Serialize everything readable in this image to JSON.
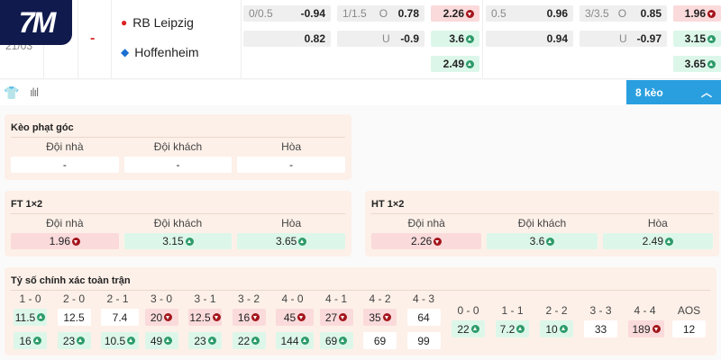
{
  "logo": "7M",
  "match": {
    "date": "21/03",
    "score": "-",
    "home": "RB Leipzig",
    "away": "Hoffenheim"
  },
  "odds": {
    "a": {
      "line": "0/0.5",
      "v1": "-0.94",
      "v2": "0.82"
    },
    "b": {
      "line": "1/1.5",
      "o": "O",
      "v1": "0.78",
      "u": "U",
      "v2": "-0.9"
    },
    "c": [
      "2.26",
      "3.6",
      "2.49"
    ],
    "d": {
      "line": "0.5",
      "v1": "0.96",
      "v2": "0.94"
    },
    "e": {
      "line": "3/3.5",
      "o": "O",
      "v1": "0.85",
      "u": "U",
      "v2": "-0.97"
    },
    "f": [
      "1.96",
      "3.15",
      "3.65"
    ]
  },
  "toolbar": {
    "more_label": "8 kèo"
  },
  "corner": {
    "title": "Kèo phạt góc",
    "headers": [
      "Đội nhà",
      "Đội khách",
      "Hòa"
    ],
    "values": [
      "-",
      "-",
      "-"
    ]
  },
  "ft": {
    "title": "FT 1×2",
    "headers": [
      "Đội nhà",
      "Đội khách",
      "Hòa"
    ],
    "values": [
      "1.96",
      "3.15",
      "3.65"
    ],
    "trend": [
      "d",
      "u",
      "u"
    ]
  },
  "ht": {
    "title": "HT 1×2",
    "headers": [
      "Đội nhà",
      "Đội khách",
      "Hòa"
    ],
    "values": [
      "2.26",
      "3.6",
      "2.49"
    ],
    "trend": [
      "d",
      "u",
      "u"
    ]
  },
  "correct_score": {
    "title": "Tỷ số chính xác toàn trận",
    "left": [
      {
        "label": "1 - 0",
        "home": "11.5",
        "ht": "u",
        "away": "16",
        "at": "u"
      },
      {
        "label": "2 - 0",
        "home": "12.5",
        "ht": "",
        "away": "23",
        "at": "u"
      },
      {
        "label": "2 - 1",
        "home": "7.4",
        "ht": "",
        "away": "10.5",
        "at": "u"
      },
      {
        "label": "3 - 0",
        "home": "20",
        "ht": "d",
        "away": "49",
        "at": "u"
      },
      {
        "label": "3 - 1",
        "home": "12.5",
        "ht": "d",
        "away": "23",
        "at": "u"
      },
      {
        "label": "3 - 2",
        "home": "16",
        "ht": "d",
        "away": "22",
        "at": "u"
      },
      {
        "label": "4 - 0",
        "home": "45",
        "ht": "d",
        "away": "144",
        "at": "u"
      },
      {
        "label": "4 - 1",
        "home": "27",
        "ht": "d",
        "away": "69",
        "at": "u"
      },
      {
        "label": "4 - 2",
        "home": "35",
        "ht": "d",
        "away": "69",
        "at": ""
      },
      {
        "label": "4 - 3",
        "home": "64",
        "ht": "",
        "away": "99",
        "at": ""
      }
    ],
    "right": [
      {
        "label": "0 - 0",
        "value": "22",
        "t": "u"
      },
      {
        "label": "1 - 1",
        "value": "7.2",
        "t": "u"
      },
      {
        "label": "2 - 2",
        "value": "10",
        "t": "u"
      },
      {
        "label": "3 - 3",
        "value": "33",
        "t": ""
      },
      {
        "label": "4 - 4",
        "value": "189",
        "t": "d"
      },
      {
        "label": "AOS",
        "value": "12",
        "t": ""
      }
    ]
  },
  "colors": {
    "up": "#2e9b6a",
    "down": "#a3161c",
    "up_bg": "#dcf7ea",
    "down_bg": "#fadadb",
    "accent": "#2a9fe0",
    "logo_bg": "#101a4d"
  }
}
